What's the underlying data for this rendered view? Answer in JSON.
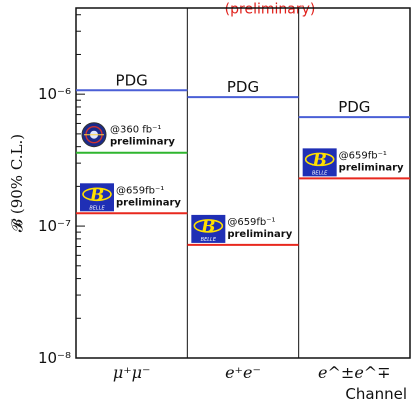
{
  "chart_data": {
    "type": "limit-plot",
    "title": "(preliminary)",
    "xlabel": "Channel",
    "ylabel": "𝓑 (90% C.L.)",
    "yscale": "log",
    "ylim": [
      1e-08,
      4.5e-06
    ],
    "y_tick_labels": [
      "10⁻⁸",
      "10⁻⁷",
      "10⁻⁶"
    ],
    "y_tick_values": [
      1e-08,
      1e-07,
      1e-06
    ],
    "categories": [
      "μ⁺μ⁻",
      "e⁺e⁻",
      "e^±e^∓"
    ],
    "series": [
      {
        "name": "PDG",
        "color": "#4a5fd6",
        "values": [
          1.07e-06,
          9.5e-07,
          6.7e-07
        ],
        "labels": [
          "PDG",
          "PDG",
          "PDG"
        ]
      },
      {
        "name": "",
        "color": "#2fb52f",
        "values": [
          3.6e-07,
          null,
          null
        ]
      },
      {
        "name": "",
        "color": "#e8281e",
        "values": [
          1.25e-07,
          7.2e-08,
          2.3e-07
        ]
      }
    ],
    "annotations": [
      {
        "category": 0,
        "logo": "belle-ii-logo",
        "line1": "@360 fb⁻¹",
        "line2": "preliminary",
        "y": 3.6e-07
      },
      {
        "category": 0,
        "logo": "belle-logo",
        "line1": "@659fb⁻¹",
        "line2": "preliminary",
        "y": 1.25e-07
      },
      {
        "category": 1,
        "logo": "belle-logo",
        "line1": "@659fb⁻¹",
        "line2": "preliminary",
        "y": 7.2e-08
      },
      {
        "category": 2,
        "logo": "belle-logo",
        "line1": "@659fb⁻¹",
        "line2": "preliminary",
        "y": 2.3e-07
      }
    ],
    "logo_text": "BELLE"
  }
}
